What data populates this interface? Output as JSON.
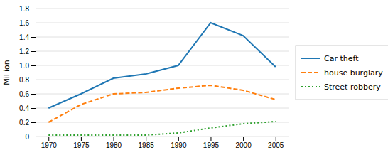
{
  "chart_data": {
    "type": "line",
    "y_label": "Million",
    "x": [
      1970,
      1975,
      1980,
      1985,
      1990,
      1995,
      2000,
      2005
    ],
    "xlim": [
      1968,
      2007
    ],
    "xticks": [
      1970,
      1975,
      1980,
      1985,
      1990,
      1995,
      2000,
      2005
    ],
    "ylim": [
      0,
      1.8
    ],
    "yticks": [
      0,
      0.2,
      0.4,
      0.6,
      0.8,
      {
        "value": 1.0,
        "label": "1.0"
      },
      1.2,
      1.4,
      1.6,
      1.8
    ],
    "grid": "y",
    "legend": "right",
    "series": [
      {
        "name": "Car theft",
        "line_style": "solid",
        "values": [
          0.4,
          0.6,
          0.82,
          0.88,
          1.0,
          1.6,
          1.42,
          0.98
        ]
      },
      {
        "name": "house burglary",
        "line_style": "dashed",
        "values": [
          0.2,
          0.45,
          0.6,
          0.62,
          0.68,
          0.72,
          0.65,
          0.52
        ]
      },
      {
        "name": "Street robbery",
        "line_style": "dotted",
        "values": [
          0.02,
          0.02,
          0.02,
          0.02,
          0.05,
          0.12,
          0.18,
          0.21
        ]
      }
    ]
  }
}
